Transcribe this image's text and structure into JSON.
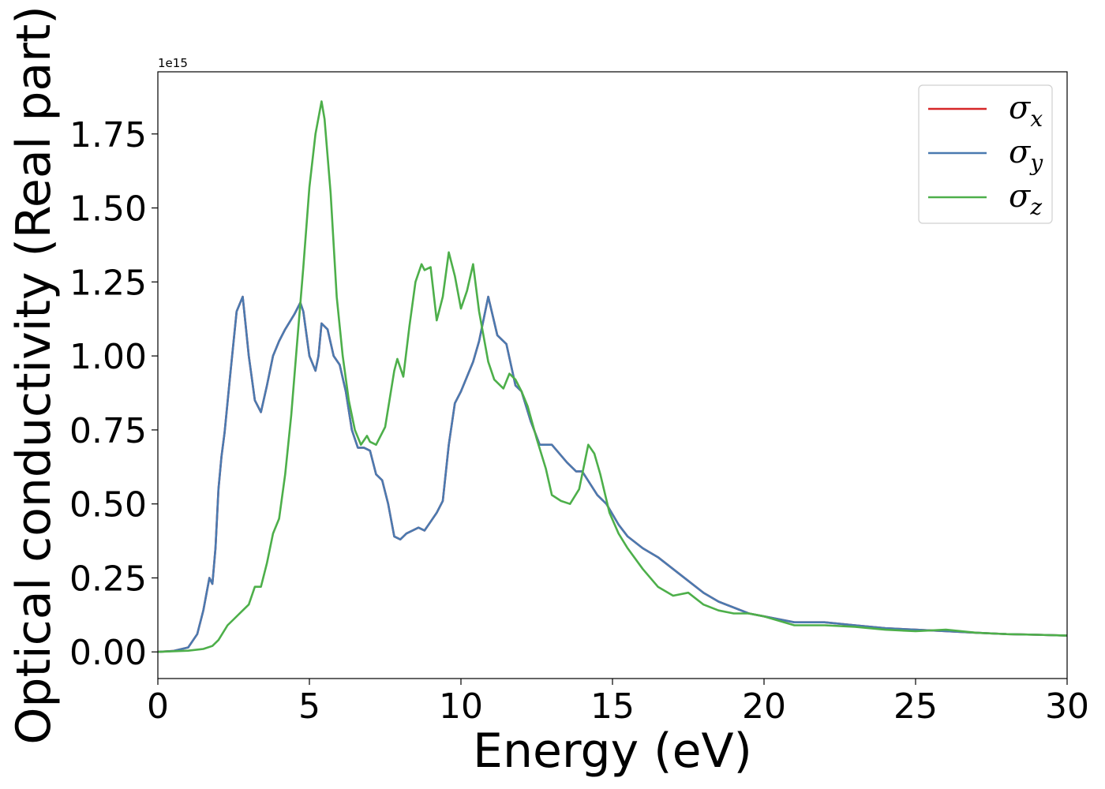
{
  "chart_data": {
    "type": "line",
    "xlabel": "Energy (eV)",
    "ylabel": "Optical conductivity (Real part)",
    "offset_text": "1e15",
    "xlim": [
      0,
      30
    ],
    "ylim": [
      -0.09,
      1.96
    ],
    "xticks": [
      0,
      5,
      10,
      15,
      20,
      25,
      30
    ],
    "xtick_labels": [
      "0",
      "5",
      "10",
      "15",
      "20",
      "25",
      "30"
    ],
    "yticks": [
      0.0,
      0.25,
      0.5,
      0.75,
      1.0,
      1.25,
      1.5,
      1.75
    ],
    "ytick_labels": [
      "0.00",
      "0.25",
      "0.50",
      "0.75",
      "1.00",
      "1.25",
      "1.50",
      "1.75"
    ],
    "grid": false,
    "legend_position": "top-right",
    "series": [
      {
        "name": "σx",
        "legend_main": "σ",
        "legend_sub": "x",
        "color": "#d62728",
        "x": [
          0,
          0.5,
          1.0,
          1.3,
          1.5,
          1.7,
          1.8,
          1.9,
          2.0,
          2.1,
          2.2,
          2.4,
          2.6,
          2.8,
          2.9,
          3.0,
          3.2,
          3.4,
          3.6,
          3.8,
          4.0,
          4.2,
          4.5,
          4.7,
          4.8,
          5.0,
          5.2,
          5.3,
          5.4,
          5.6,
          5.8,
          6.0,
          6.2,
          6.4,
          6.6,
          6.8,
          7.0,
          7.2,
          7.4,
          7.6,
          7.8,
          8.0,
          8.2,
          8.4,
          8.6,
          8.8,
          9.0,
          9.2,
          9.4,
          9.6,
          9.8,
          10.0,
          10.2,
          10.4,
          10.6,
          10.9,
          11.2,
          11.5,
          11.8,
          12.0,
          12.3,
          12.6,
          13.0,
          13.5,
          13.8,
          14.0,
          14.5,
          14.8,
          15.2,
          15.5,
          16.0,
          16.5,
          17.0,
          17.5,
          18.0,
          18.5,
          19.0,
          19.5,
          20.0,
          21.0,
          22.0,
          23.0,
          24.0,
          25.0,
          26.0,
          27.0,
          28.0,
          29.0,
          30.0
        ],
        "values": [
          0,
          0.003,
          0.015,
          0.06,
          0.14,
          0.25,
          0.23,
          0.35,
          0.55,
          0.66,
          0.74,
          0.95,
          1.15,
          1.2,
          1.1,
          1.0,
          0.85,
          0.81,
          0.9,
          1.0,
          1.05,
          1.09,
          1.14,
          1.18,
          1.15,
          1.0,
          0.95,
          1.0,
          1.11,
          1.09,
          1.0,
          0.97,
          0.88,
          0.75,
          0.69,
          0.69,
          0.68,
          0.6,
          0.58,
          0.5,
          0.39,
          0.38,
          0.4,
          0.41,
          0.42,
          0.41,
          0.44,
          0.47,
          0.51,
          0.7,
          0.84,
          0.88,
          0.93,
          0.98,
          1.05,
          1.2,
          1.07,
          1.04,
          0.9,
          0.88,
          0.78,
          0.7,
          0.7,
          0.64,
          0.61,
          0.61,
          0.53,
          0.5,
          0.43,
          0.39,
          0.35,
          0.32,
          0.28,
          0.24,
          0.2,
          0.17,
          0.15,
          0.13,
          0.12,
          0.1,
          0.1,
          0.09,
          0.08,
          0.075,
          0.07,
          0.065,
          0.06,
          0.058,
          0.055
        ]
      },
      {
        "name": "σy",
        "legend_main": "σ",
        "legend_sub": "y",
        "color": "#4a7ab0",
        "x": [
          0,
          0.5,
          1.0,
          1.3,
          1.5,
          1.7,
          1.8,
          1.9,
          2.0,
          2.1,
          2.2,
          2.4,
          2.6,
          2.8,
          2.9,
          3.0,
          3.2,
          3.4,
          3.6,
          3.8,
          4.0,
          4.2,
          4.5,
          4.7,
          4.8,
          5.0,
          5.2,
          5.3,
          5.4,
          5.6,
          5.8,
          6.0,
          6.2,
          6.4,
          6.6,
          6.8,
          7.0,
          7.2,
          7.4,
          7.6,
          7.8,
          8.0,
          8.2,
          8.4,
          8.6,
          8.8,
          9.0,
          9.2,
          9.4,
          9.6,
          9.8,
          10.0,
          10.2,
          10.4,
          10.6,
          10.9,
          11.2,
          11.5,
          11.8,
          12.0,
          12.3,
          12.6,
          13.0,
          13.5,
          13.8,
          14.0,
          14.5,
          14.8,
          15.2,
          15.5,
          16.0,
          16.5,
          17.0,
          17.5,
          18.0,
          18.5,
          19.0,
          19.5,
          20.0,
          21.0,
          22.0,
          23.0,
          24.0,
          25.0,
          26.0,
          27.0,
          28.0,
          29.0,
          30.0
        ],
        "values": [
          0,
          0.003,
          0.015,
          0.06,
          0.14,
          0.25,
          0.23,
          0.35,
          0.55,
          0.66,
          0.74,
          0.95,
          1.15,
          1.2,
          1.1,
          1.0,
          0.85,
          0.81,
          0.9,
          1.0,
          1.05,
          1.09,
          1.14,
          1.18,
          1.15,
          1.0,
          0.95,
          1.0,
          1.11,
          1.09,
          1.0,
          0.97,
          0.88,
          0.75,
          0.69,
          0.69,
          0.68,
          0.6,
          0.58,
          0.5,
          0.39,
          0.38,
          0.4,
          0.41,
          0.42,
          0.41,
          0.44,
          0.47,
          0.51,
          0.7,
          0.84,
          0.88,
          0.93,
          0.98,
          1.05,
          1.2,
          1.07,
          1.04,
          0.9,
          0.88,
          0.78,
          0.7,
          0.7,
          0.64,
          0.61,
          0.61,
          0.53,
          0.5,
          0.43,
          0.39,
          0.35,
          0.32,
          0.28,
          0.24,
          0.2,
          0.17,
          0.15,
          0.13,
          0.12,
          0.1,
          0.1,
          0.09,
          0.08,
          0.075,
          0.07,
          0.065,
          0.06,
          0.058,
          0.055
        ]
      },
      {
        "name": "σz",
        "legend_main": "σ",
        "legend_sub": "z",
        "color": "#4daf4a",
        "x": [
          0,
          1.0,
          1.5,
          1.8,
          2.0,
          2.3,
          2.5,
          2.8,
          3.0,
          3.2,
          3.4,
          3.6,
          3.8,
          4.0,
          4.2,
          4.4,
          4.6,
          4.8,
          5.0,
          5.2,
          5.4,
          5.5,
          5.7,
          5.9,
          6.1,
          6.3,
          6.5,
          6.7,
          6.9,
          7.0,
          7.2,
          7.5,
          7.8,
          7.9,
          8.1,
          8.3,
          8.5,
          8.7,
          8.8,
          9.0,
          9.2,
          9.4,
          9.6,
          9.8,
          10.0,
          10.2,
          10.4,
          10.6,
          10.9,
          11.1,
          11.4,
          11.6,
          11.8,
          12.0,
          12.2,
          12.5,
          12.8,
          13.0,
          13.3,
          13.6,
          13.9,
          14.2,
          14.4,
          14.6,
          14.9,
          15.2,
          15.5,
          16.0,
          16.5,
          17.0,
          17.5,
          18.0,
          18.5,
          19.0,
          19.5,
          20.0,
          21.0,
          22.0,
          23.0,
          24.0,
          25.0,
          26.0,
          27.0,
          28.0,
          29.0,
          30.0
        ],
        "values": [
          0,
          0.004,
          0.01,
          0.02,
          0.04,
          0.09,
          0.11,
          0.14,
          0.16,
          0.22,
          0.22,
          0.3,
          0.4,
          0.45,
          0.6,
          0.8,
          1.05,
          1.3,
          1.57,
          1.75,
          1.86,
          1.8,
          1.55,
          1.2,
          1.0,
          0.85,
          0.75,
          0.7,
          0.73,
          0.71,
          0.7,
          0.76,
          0.95,
          0.99,
          0.93,
          1.1,
          1.25,
          1.31,
          1.29,
          1.3,
          1.12,
          1.2,
          1.35,
          1.27,
          1.16,
          1.22,
          1.31,
          1.15,
          0.98,
          0.92,
          0.89,
          0.94,
          0.92,
          0.88,
          0.83,
          0.72,
          0.62,
          0.53,
          0.51,
          0.5,
          0.55,
          0.7,
          0.67,
          0.6,
          0.47,
          0.4,
          0.35,
          0.28,
          0.22,
          0.19,
          0.2,
          0.16,
          0.14,
          0.13,
          0.13,
          0.12,
          0.09,
          0.09,
          0.085,
          0.075,
          0.07,
          0.075,
          0.065,
          0.06,
          0.058,
          0.055
        ]
      }
    ]
  }
}
